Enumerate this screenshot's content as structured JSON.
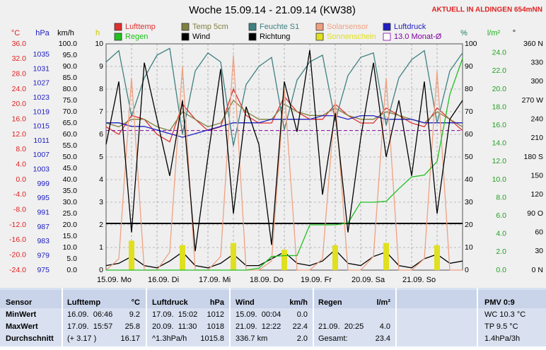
{
  "chart_data": {
    "type": "line",
    "title": "Woche 15.09.14 - 21.09.14 (KW38)",
    "subtitle": "AKTUELL IN ALDINGEN 654mNN",
    "categories": [
      "15.09. Mo",
      null,
      null,
      null,
      "16.09. Di",
      null,
      null,
      null,
      "17.09. Mi",
      null,
      null,
      null,
      "18.09. Do",
      null,
      null,
      null,
      "19.09. Fr",
      null,
      null,
      null,
      "20.09. Sa",
      null,
      null,
      null,
      "21.09. So",
      null,
      null,
      null,
      null
    ],
    "grid": true,
    "axes": [
      {
        "label": "°C",
        "color": "#e02020",
        "ylim": [
          -24,
          36
        ],
        "yticks": [
          {
            "value": -24,
            "label": "-24.0"
          },
          {
            "value": -20,
            "label": "-20.0"
          },
          {
            "value": -16,
            "label": "-16.0"
          },
          {
            "value": -12,
            "label": "-12.0"
          },
          {
            "value": -8,
            "label": "-8.0"
          },
          {
            "value": -4,
            "label": "-4.0"
          },
          {
            "value": 0,
            "label": "0.0"
          },
          {
            "value": 4,
            "label": "4.0"
          },
          {
            "value": 8,
            "label": "8.0"
          },
          {
            "value": 12,
            "label": "12.0"
          },
          {
            "value": 16,
            "label": "16.0"
          },
          {
            "value": 20,
            "label": "20.0"
          },
          {
            "value": 24,
            "label": "24.0"
          },
          {
            "value": 28,
            "label": "28.0"
          },
          {
            "value": 32,
            "label": "32.0"
          },
          {
            "value": 36,
            "label": "36.0"
          }
        ],
        "series": [
          {
            "name": "Lufttemp",
            "color": "#e03030",
            "values": [
              14,
              12,
              17,
              16,
              12,
              10,
              20,
              16,
              13,
              14,
              24,
              17,
              15,
              15,
              22,
              18,
              16,
              16,
              20,
              17,
              15,
              15,
              19,
              17,
              15,
              14,
              19,
              16,
              13
            ]
          },
          {
            "name": "Temp 5cm",
            "color": "#808040",
            "values": [
              15,
              14,
              16,
              16,
              14,
              13,
              18,
              16,
              14,
              15,
              21,
              18,
              16,
              16,
              20,
              18,
              17,
              17,
              19,
              17,
              16,
              16,
              18,
              17,
              16,
              15,
              18,
              16,
              14
            ]
          }
        ],
        "reference_lines": [
          {
            "name": "13.0 Monat-Ø",
            "value": 13,
            "color": "#8000a0"
          }
        ]
      },
      {
        "label": "hPa",
        "color": "#2020c0",
        "ylim": [
          975,
          1038
        ],
        "yticks": [
          975,
          979,
          983,
          987,
          991,
          995,
          999,
          1003,
          1007,
          1011,
          1015,
          1019,
          1023,
          1027,
          1031,
          1035
        ],
        "series": [
          {
            "name": "Luftdruck",
            "color": "#2020c0",
            "values": [
              1016,
              1016,
              1015,
              1015,
              1014,
              1013,
              1012,
              1013,
              1014,
              1015,
              1016,
              1016,
              1016,
              1017,
              1017,
              1017,
              1017,
              1018,
              1018,
              1017,
              1018,
              1018,
              1017,
              1017,
              1017,
              1016,
              1016,
              1016,
              1016
            ]
          }
        ]
      },
      {
        "label": "km/h",
        "color": "#000000",
        "ylim": [
          0,
          100
        ],
        "yticks": [
          {
            "value": 0,
            "label": "0.0"
          },
          {
            "value": 5,
            "label": "5.0"
          },
          {
            "value": 10,
            "label": "10.0"
          },
          {
            "value": 15,
            "label": "15.0"
          },
          {
            "value": 20,
            "label": "20.0"
          },
          {
            "value": 25,
            "label": "25.0"
          },
          {
            "value": 30,
            "label": "30.0"
          },
          {
            "value": 35,
            "label": "35.0"
          },
          {
            "value": 40,
            "label": "40.0"
          },
          {
            "value": 45,
            "label": "45.0"
          },
          {
            "value": 50,
            "label": "50.0"
          },
          {
            "value": 55,
            "label": "55.0"
          },
          {
            "value": 60,
            "label": "60.0"
          },
          {
            "value": 65,
            "label": "65.0"
          },
          {
            "value": 70,
            "label": "70.0"
          },
          {
            "value": 75,
            "label": "75.0"
          },
          {
            "value": 80,
            "label": "80.0"
          },
          {
            "value": 85,
            "label": "85.0"
          },
          {
            "value": 90,
            "label": "90.0"
          },
          {
            "value": 95,
            "label": "95.0"
          },
          {
            "value": 100,
            "label": "100.0"
          }
        ],
        "series": [
          {
            "name": "Wind",
            "color": "#000000",
            "values": [
              2,
              3,
              6,
              2,
              1,
              4,
              8,
              2,
              1,
              3,
              7,
              2,
              2,
              5,
              8,
              3,
              2,
              4,
              9,
              3,
              2,
              6,
              8,
              2,
              1,
              5,
              7,
              3,
              4
            ]
          }
        ]
      },
      {
        "label": "h",
        "color": "#c8c800",
        "ylim": [
          0,
          10
        ],
        "yticks": [
          0,
          1,
          2,
          3,
          4,
          5,
          6,
          7,
          8,
          9,
          10
        ],
        "series": [
          {
            "name": "Sonnenschein",
            "color": "#e0e020",
            "type": "bar",
            "values": [
              0,
              0,
              1.3,
              0,
              0,
              0,
              1.1,
              0,
              0,
              0,
              1.2,
              0,
              0,
              0,
              0.9,
              0,
              0,
              0,
              1.1,
              0,
              0,
              0,
              1.2,
              0,
              0,
              0,
              1.1,
              0,
              0
            ]
          }
        ]
      },
      {
        "label": "%",
        "color": "#208060",
        "ylim": [
          0,
          100
        ],
        "yticks": [
          0,
          10,
          20,
          30,
          40,
          50,
          60,
          70,
          80,
          90,
          100
        ],
        "series": [
          {
            "name": "Feuchte S1",
            "color": "#408080",
            "values": [
              92,
              97,
              68,
              85,
              95,
              98,
              60,
              88,
              96,
              92,
              55,
              82,
              90,
              94,
              62,
              84,
              92,
              95,
              66,
              86,
              94,
              96,
              64,
              85,
              93,
              97,
              65,
              88,
              96
            ]
          },
          {
            "name": "Solarsensor",
            "color": "#f0a080",
            "values": [
              0,
              5,
              85,
              0,
              0,
              8,
              90,
              0,
              0,
              6,
              95,
              0,
              0,
              4,
              80,
              0,
              0,
              5,
              75,
              0,
              0,
              6,
              85,
              0,
              0,
              5,
              88,
              0,
              0
            ]
          }
        ]
      },
      {
        "label": "l/m²",
        "color": "#20b020",
        "ylim": [
          0,
          25
        ],
        "yticks": [
          {
            "value": 0,
            "label": "0.0"
          },
          {
            "value": 2,
            "label": "2.0"
          },
          {
            "value": 4,
            "label": "4.0"
          },
          {
            "value": 6,
            "label": "6.0"
          },
          {
            "value": 8,
            "label": "8.0"
          },
          {
            "value": 10,
            "label": "10.0"
          },
          {
            "value": 12,
            "label": "12.0"
          },
          {
            "value": 14,
            "label": "14.0"
          },
          {
            "value": 16,
            "label": "16.0"
          },
          {
            "value": 18,
            "label": "18.0"
          },
          {
            "value": 20,
            "label": "20.0"
          },
          {
            "value": 22,
            "label": "22.0"
          },
          {
            "value": 24,
            "label": "24.0"
          }
        ],
        "series": [
          {
            "name": "Regen",
            "color": "#20c020",
            "values": [
              0,
              0,
              0,
              0,
              0,
              0,
              0,
              0,
              0,
              0,
              0,
              0,
              0.2,
              1.5,
              1.6,
              1.6,
              5.0,
              5.0,
              5.0,
              5.2,
              7.5,
              7.5,
              7.6,
              9.0,
              10.3,
              10.5,
              12.0,
              19.4,
              23.4
            ]
          }
        ]
      },
      {
        "label": "°",
        "color": "#000000",
        "ylim": [
          0,
          360
        ],
        "yticks": [
          {
            "value": 0,
            "label": "0 N"
          },
          {
            "value": 30,
            "label": "30"
          },
          {
            "value": 60,
            "label": "60"
          },
          {
            "value": 90,
            "label": "90 O"
          },
          {
            "value": 120,
            "label": "120"
          },
          {
            "value": 150,
            "label": "150"
          },
          {
            "value": 180,
            "label": "180 S"
          },
          {
            "value": 210,
            "label": "210"
          },
          {
            "value": 240,
            "label": "240"
          },
          {
            "value": 270,
            "label": "270 W"
          },
          {
            "value": 300,
            "label": "300"
          },
          {
            "value": 330,
            "label": "330"
          },
          {
            "value": 360,
            "label": "360 N"
          }
        ],
        "series": [
          {
            "name": "Richtung",
            "color": "#000000",
            "values": [
              200,
              300,
              60,
              330,
              240,
              150,
              270,
              30,
              180,
              320,
              90,
              260,
              200,
              40,
              300,
              220,
              350,
              120,
              250,
              60,
              210,
              330,
              180,
              270,
              150,
              300,
              90,
              240,
              270
            ]
          }
        ]
      }
    ]
  },
  "table": {
    "header": [
      "Sensor",
      "Lufttemp",
      "°C",
      "Luftdruck",
      "hPa",
      "Wind",
      "km/h",
      "Regen",
      "l/m²",
      "PMV 0:9"
    ],
    "rows": [
      [
        "MinWert",
        "16.09.  06:46",
        "9.2",
        "17.09.  15:02",
        "1012",
        "15.09.  00:04",
        "0.0",
        null,
        null,
        "WC 10.3 °C"
      ],
      [
        "MaxWert",
        "17.09.  15:57",
        "25.8",
        "20.09.  11:30",
        "1018",
        "21.09.  12:22",
        "22.4",
        "21.09.  20:25",
        "4.0",
        "TP 9.5 °C"
      ],
      [
        "Durchschnitt",
        "(+ 3.17 )",
        "16.17",
        "^1.3hPa/h",
        "1015.8",
        "336.7 km",
        "2.0",
        "Gesamt:",
        "23.4",
        "1.4hPa/3h"
      ]
    ]
  }
}
